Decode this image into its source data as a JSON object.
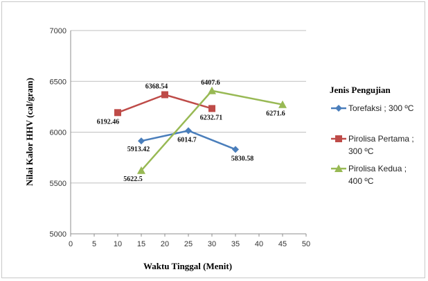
{
  "chart_data": {
    "type": "line",
    "title": "",
    "xlabel": "Waktu Tinggal (Menit)",
    "ylabel": "Nilai Kalor HHV (cal/gram)",
    "xlim": [
      0,
      50
    ],
    "ylim": [
      5000,
      7000
    ],
    "x_ticks": [
      "0",
      "5",
      "10",
      "15",
      "20",
      "25",
      "30",
      "35",
      "40",
      "45",
      "50"
    ],
    "y_ticks": [
      "5000",
      "5500",
      "6000",
      "6500",
      "7000"
    ],
    "grid": "horizontal",
    "legend_position": "right",
    "legend_title": "Jenis Pengujian",
    "series": [
      {
        "name": "Torefaksi ; 300 ºC",
        "legend_lines": [
          "Torefaksi ; 300 ºC"
        ],
        "color": "#4A7EBB",
        "marker": "diamond",
        "x": [
          15,
          25,
          35
        ],
        "values": [
          5913.42,
          6014.7,
          5830.58
        ],
        "labels": [
          "5913.42",
          "6014.7",
          "5830.58"
        ]
      },
      {
        "name": "Pirolisa Pertama ; 300 ºC",
        "legend_lines": [
          "Pirolisa Pertama ;",
          "300 ºC"
        ],
        "color": "#BE4B48",
        "marker": "square",
        "x": [
          10,
          20,
          30
        ],
        "values": [
          6192.46,
          6368.54,
          6232.71
        ],
        "labels": [
          "6192.46",
          "6368.54",
          "6232.71"
        ]
      },
      {
        "name": "Pirolisa Kedua ; 400 ºC",
        "legend_lines": [
          "Pirolisa Kedua ;",
          "400 ºC"
        ],
        "color": "#98B954",
        "marker": "triangle",
        "x": [
          15,
          30,
          45
        ],
        "values": [
          5622.5,
          6407.6,
          6271.6
        ],
        "labels": [
          "5622.5",
          "6407.6",
          "6271.6"
        ]
      }
    ]
  }
}
